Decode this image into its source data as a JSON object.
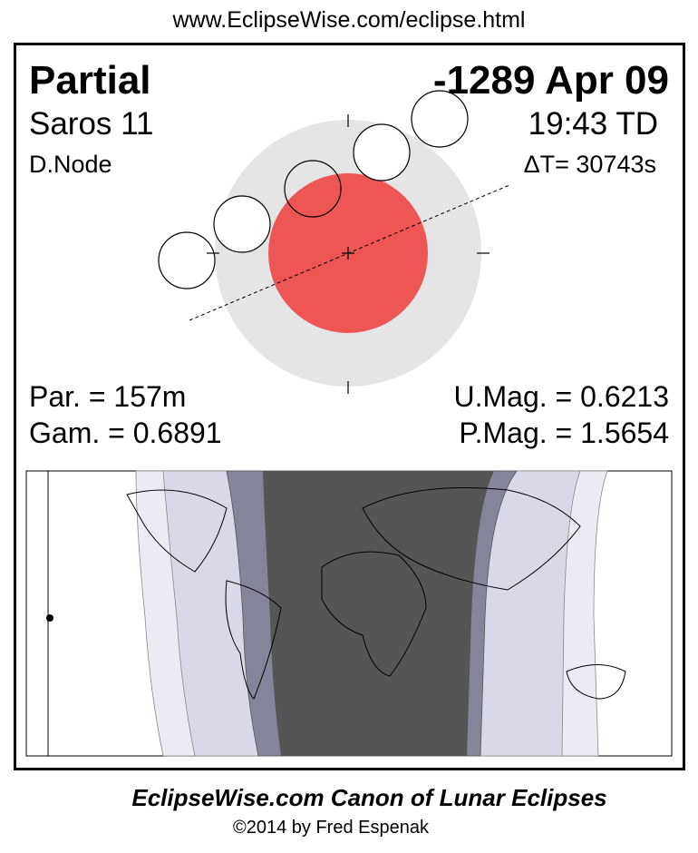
{
  "url": "www.EclipseWise.com/eclipse.html",
  "header": {
    "eclipse_type": "Partial",
    "date": "-1289 Apr 09",
    "saros": "Saros  11",
    "time": "19:43 TD",
    "node": "D.Node",
    "delta_t": "ΔT=  30743s"
  },
  "stats": {
    "partial_duration": "Par. = 157m",
    "gamma": "Gam. = 0.6891",
    "umbral_magnitude": "U.Mag. = 0.6213",
    "penumbral_magnitude": "P.Mag. = 1.5654"
  },
  "colors": {
    "penumbra": "#e5e5e5",
    "umbra": "#ee5555",
    "map_night": "#555555",
    "map_band_dark": "#85859a",
    "map_band_light": "#d8d8e6",
    "map_band_lightest": "#ebebf3"
  },
  "footer": {
    "title": "EclipseWise.com Canon of Lunar Eclipses",
    "copyright": "©2014 by Fred Espenak"
  }
}
